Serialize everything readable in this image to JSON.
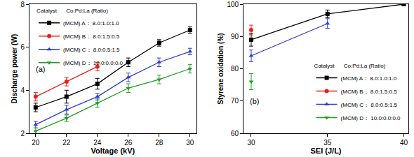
{
  "chart_data": [
    {
      "type": "line",
      "label": "(a)",
      "x_label": "Voltage (kV)",
      "y_label": "Discharge power (W)",
      "xlim": [
        19.6,
        30.4
      ],
      "xticks": [
        20,
        22,
        24,
        26,
        28,
        30
      ],
      "ylim": [
        2,
        8
      ],
      "yticks": [
        2,
        4,
        6,
        8
      ],
      "grid": false,
      "legend": "upper left",
      "legend_title": "Catalyst      Co:Pd:La (Ratio)",
      "series": [
        {
          "name": "(MCM) A： 8.0:1.0:1.0",
          "color": "#000000",
          "marker": "square",
          "line_style": "solid",
          "x": [
            20,
            22,
            24,
            26,
            28,
            30
          ],
          "values": [
            3.2,
            3.7,
            4.3,
            5.3,
            6.2,
            6.8
          ],
          "errors": [
            0.2,
            0.3,
            0.25,
            0.2,
            0.15,
            0.15
          ]
        },
        {
          "name": "(MCM) B： 8.0:1.5:0.5",
          "color": "#e8201c",
          "marker": "circle",
          "line_style": "solid",
          "x": [
            20,
            22,
            24
          ],
          "values": [
            3.7,
            4.4,
            5.1
          ],
          "errors": [
            0.2,
            0.2,
            0.2
          ]
        },
        {
          "name": "(MCM) C： 8.0:0.5:1.5",
          "color": "#2e3bd6",
          "marker": "triangle-up",
          "line_style": "solid",
          "x": [
            20,
            22,
            24,
            26,
            28,
            30
          ],
          "values": [
            2.4,
            3.1,
            3.7,
            4.6,
            5.3,
            5.8
          ],
          "errors": [
            0.15,
            0.2,
            0.15,
            0.2,
            0.2,
            0.15
          ]
        },
        {
          "name": "(MCM) D： 10.0:0.0:0.0",
          "color": "#1f9e1f",
          "marker": "triangle-down",
          "line_style": "solid",
          "x": [
            20,
            22,
            24,
            26,
            28,
            30
          ],
          "values": [
            2.1,
            2.7,
            3.4,
            4.1,
            4.5,
            5.0
          ],
          "errors": [
            0.15,
            0.15,
            0.2,
            0.2,
            0.2,
            0.2
          ]
        }
      ]
    },
    {
      "type": "line",
      "label": "(b)",
      "x_label": "SEI (J/L)",
      "y_label": "Styrene oxidation (%)",
      "xlim": [
        29.5,
        40.3
      ],
      "xticks": [
        30,
        35,
        40
      ],
      "ylim": [
        60,
        100
      ],
      "yticks": [
        60,
        70,
        80,
        90,
        100
      ],
      "grid": false,
      "legend": "lower right",
      "legend_title": "Catalyst      Co:Pd:La (Ratio)",
      "series": [
        {
          "name": "(MCM) A： 8.0:1.0:1.0",
          "color": "#000000",
          "marker": "square",
          "line_style": "solid",
          "x": [
            30,
            35,
            40
          ],
          "values": [
            89,
            97,
            100
          ],
          "errors": [
            2,
            1.2,
            0.3
          ]
        },
        {
          "name": "(MCM) B： 8.0:1.5:0.5",
          "color": "#e8201c",
          "marker": "circle",
          "line_style": "solid",
          "x": [
            30
          ],
          "values": [
            92
          ],
          "errors": [
            1.5
          ]
        },
        {
          "name": "(MCM) C： 8.0:0.5:1.5",
          "color": "#2e3bd6",
          "marker": "triangle-up",
          "line_style": "solid",
          "x": [
            30,
            35
          ],
          "values": [
            84,
            94
          ],
          "errors": [
            1.8,
            1.5
          ]
        },
        {
          "name": "(MCM) D： 10.0:0.0:0.0",
          "color": "#1f9e1f",
          "marker": "triangle-down",
          "line_style": "solid",
          "x": [
            30
          ],
          "values": [
            76
          ],
          "errors": [
            2.5
          ]
        }
      ]
    }
  ]
}
